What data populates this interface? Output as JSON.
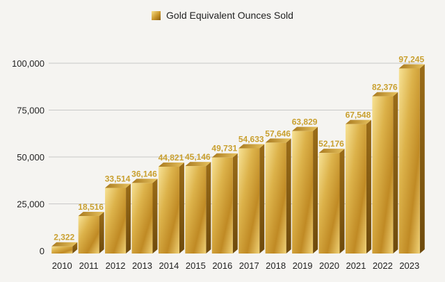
{
  "chart_data": {
    "type": "bar",
    "title": "",
    "xlabel": "",
    "ylabel": "",
    "legend": {
      "label": "Gold Equivalent Ounces Sold",
      "placement": "top-center"
    },
    "categories": [
      "2010",
      "2011",
      "2012",
      "2013",
      "2014",
      "2015",
      "2016",
      "2017",
      "2018",
      "2019",
      "2020",
      "2021",
      "2022",
      "2023"
    ],
    "series": [
      {
        "name": "Gold Equivalent Ounces Sold",
        "values": [
          2322,
          18516,
          33514,
          36146,
          44821,
          45146,
          49731,
          54633,
          57646,
          63829,
          52176,
          67548,
          82376,
          97245
        ]
      }
    ],
    "data_labels": [
      "2,322",
      "18,516",
      "33,514",
      "36,146",
      "44,821",
      "45,146",
      "49,731",
      "54,633",
      "57,646",
      "63,829",
      "52,176",
      "67,548",
      "82,376",
      "97,245"
    ],
    "ylim": [
      0,
      100000
    ],
    "yticks": [
      0,
      25000,
      50000,
      75000,
      100000
    ],
    "ytick_labels": [
      "0",
      "25,000",
      "50,000",
      "75,000",
      "100,000"
    ],
    "grid": true,
    "colors": {
      "bar_light": "#f4dc84",
      "bar_mid": "#cfa03a",
      "bar_dark": "#8a5e12",
      "label": "#c9a030",
      "grid": "#c8c8c8",
      "background": "#f5f4f1"
    }
  }
}
